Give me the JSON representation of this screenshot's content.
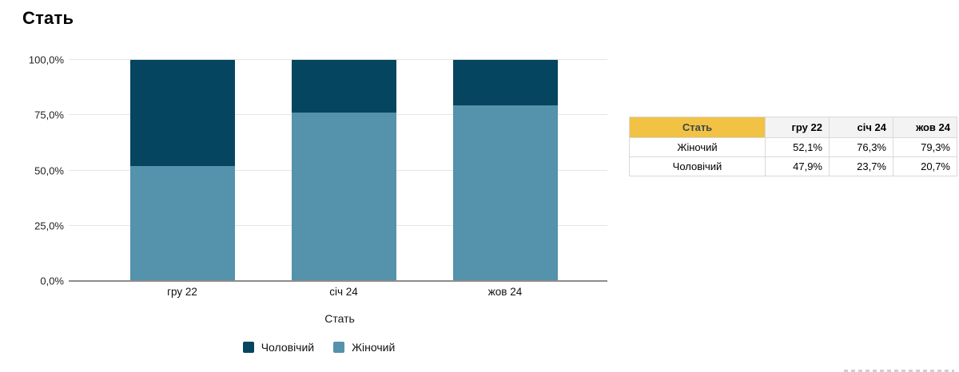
{
  "chart": {
    "title": "Стать",
    "xlabel": "Стать"
  },
  "chart_data": {
    "type": "bar",
    "stacked": true,
    "percent_stacked": true,
    "title": "Стать",
    "xlabel": "Стать",
    "ylabel": "",
    "ylim": [
      0,
      100
    ],
    "grid": true,
    "y_tick_labels": [
      "0,0%",
      "25,0%",
      "50,0%",
      "75,0%",
      "100,0%"
    ],
    "categories": [
      "гру 22",
      "січ 24",
      "жов 24"
    ],
    "series": [
      {
        "name": "Жіночий",
        "color": "#5592ab",
        "values": [
          52.1,
          76.3,
          79.3
        ]
      },
      {
        "name": "Чоловічий",
        "color": "#05455f",
        "values": [
          47.9,
          23.7,
          20.7
        ]
      }
    ],
    "legend": {
      "position": "bottom",
      "items": [
        {
          "label": "Чоловічий",
          "color": "#05455f"
        },
        {
          "label": "Жіночий",
          "color": "#5592ab"
        }
      ]
    }
  },
  "table": {
    "header": [
      "Стать",
      "гру 22",
      "січ 24",
      "жов 24"
    ],
    "rows": [
      [
        "Жіночий",
        "52,1%",
        "76,3%",
        "79,3%"
      ],
      [
        "Чоловічий",
        "47,9%",
        "23,7%",
        "20,7%"
      ]
    ],
    "accent_header_color": "#f1c244"
  },
  "colors": {
    "male_series": "#05455f",
    "female_series": "#5592ab",
    "gridline": "#e5e5e5",
    "axis_line": "#8c8c8c",
    "table_border": "#d9d9d9",
    "table_header_bg": "#f3f3f3"
  }
}
